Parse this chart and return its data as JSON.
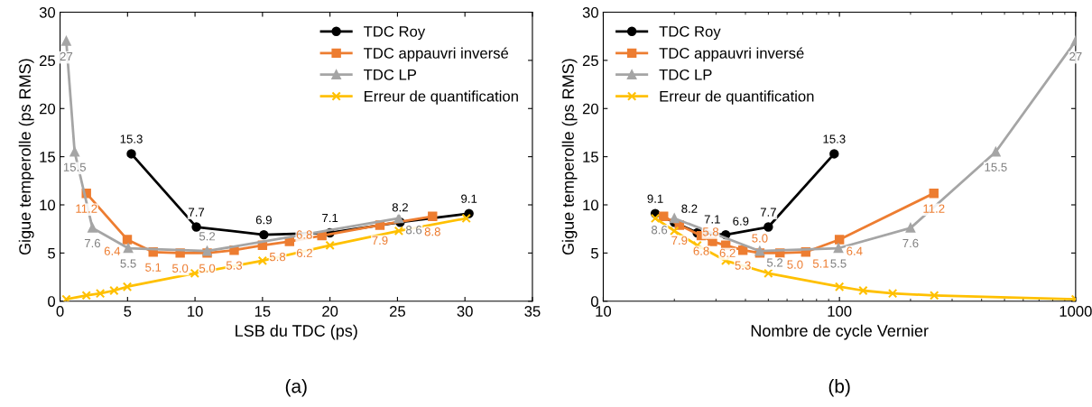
{
  "chart_data": [
    {
      "type": "line",
      "xlabel": "LSB du TDC (ps)",
      "ylabel": "Gigue temperolle (ps RMS)",
      "annotations": [
        "(a)"
      ],
      "xlim": [
        0,
        35
      ],
      "xticks": [
        0,
        5,
        10,
        15,
        20,
        25,
        30,
        35
      ],
      "ylim": [
        0,
        30
      ],
      "yticks": [
        0,
        5,
        10,
        15,
        20,
        25,
        30
      ],
      "grid": false,
      "legend": "top right",
      "series": [
        {
          "name": "TDC Roy",
          "color": "#000000",
          "marker": "circle",
          "x": [
            5.28,
            10.1,
            15.1,
            20.0,
            25.2,
            30.3
          ],
          "values": [
            15.3,
            7.7,
            6.9,
            7.1,
            8.2,
            9.1
          ],
          "value_labels": [
            "15.3",
            "7.7",
            "6.9",
            "7.1",
            "8.2",
            "9.1"
          ]
        },
        {
          "name": "TDC appauvri inversé",
          "color": "#ed7d31",
          "marker": "square",
          "x": [
            1.95,
            4.98,
            6.9,
            8.9,
            10.9,
            12.9,
            15.0,
            17.0,
            19.4,
            23.7,
            27.6
          ],
          "values": [
            11.2,
            6.4,
            5.1,
            5.0,
            5.0,
            5.3,
            5.8,
            6.2,
            6.8,
            7.9,
            8.8
          ],
          "value_labels": [
            "11.2",
            "6.4",
            "5.1",
            "5.0",
            "5.0",
            "5.3",
            "5.8",
            "6.2",
            "6.8",
            "7.9",
            "8.8"
          ]
        },
        {
          "name": "TDC LP",
          "color": "#a5a5a5",
          "marker": "triangle",
          "x": [
            0.46,
            1.08,
            2.4,
            5.05,
            10.9,
            25.1
          ],
          "values": [
            27,
            15.5,
            7.6,
            5.5,
            5.2,
            8.6
          ],
          "value_labels": [
            "27",
            "15.5",
            "7.6",
            "5.5",
            "5.2",
            "8.6"
          ]
        },
        {
          "name": "Erreur de quantification",
          "color": "#ffc000",
          "marker": "cross",
          "x": [
            0.46,
            1.95,
            2.98,
            4.0,
            4.98,
            9.98,
            15.0,
            20.0,
            25.1,
            30.1
          ],
          "values": [
            0.2,
            0.6,
            0.8,
            1.1,
            1.5,
            2.9,
            4.2,
            5.8,
            7.3,
            8.6
          ]
        }
      ]
    },
    {
      "type": "line",
      "xlabel": "Nombre de cycle Vernier",
      "ylabel": "Gigue temperolle (ps RMS)",
      "annotations": [
        "(b)"
      ],
      "log": "x",
      "xlim": [
        10,
        1000
      ],
      "xticks": [
        10,
        100,
        1000
      ],
      "ylim": [
        0,
        30
      ],
      "yticks": [
        0,
        5,
        10,
        15,
        20,
        25,
        30
      ],
      "grid": false,
      "legend": "top left",
      "series": [
        {
          "name": "TDC Roy",
          "color": "#000000",
          "marker": "circle",
          "x": [
            16.6,
            20,
            25,
            33,
            50,
            95
          ],
          "values": [
            9.1,
            8.2,
            7.1,
            6.9,
            7.7,
            15.3
          ],
          "value_labels": [
            "9.1",
            "8.2",
            "7.1",
            "6.9",
            "7.7",
            "15.3"
          ]
        },
        {
          "name": "TDC appauvri inversé",
          "color": "#ed7d31",
          "marker": "square",
          "x": [
            18,
            21,
            26,
            29,
            33,
            39,
            46,
            56,
            72,
            100,
            251
          ],
          "values": [
            8.8,
            7.9,
            6.8,
            6.2,
            5.8,
            5.3,
            5.0,
            5.0,
            5.1,
            6.4,
            11.2
          ],
          "value_labels": [
            null,
            "7.9",
            "6.8",
            "6.2",
            "5.8",
            "5.3",
            "5.0",
            "5.0",
            "5.1",
            "6.4",
            "11.2"
          ]
        },
        {
          "name": "TDC LP",
          "color": "#a5a5a5",
          "marker": "triangle",
          "x": [
            20,
            46,
            99,
            200,
            459,
            1000
          ],
          "values": [
            8.6,
            5.2,
            5.5,
            7.6,
            15.5,
            27
          ],
          "value_labels": [
            "8.6",
            "5.2",
            "5.5",
            "7.6",
            "15.5",
            "27"
          ]
        },
        {
          "name": "Erreur de quantification",
          "color": "#ffc000",
          "marker": "cross",
          "x": [
            16.6,
            20,
            25,
            33,
            50,
            100,
            126,
            168,
            252,
            1000
          ],
          "values": [
            8.6,
            7.3,
            5.8,
            4.2,
            2.9,
            1.5,
            1.1,
            0.8,
            0.6,
            0.2
          ]
        }
      ]
    }
  ]
}
